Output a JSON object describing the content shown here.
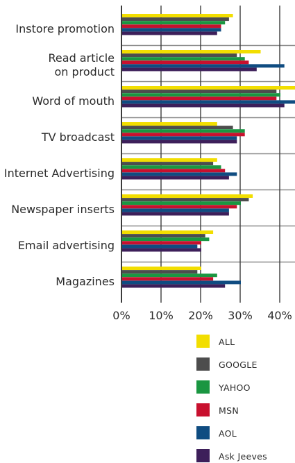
{
  "chart_data": {
    "type": "bar",
    "orientation": "horizontal",
    "title": "",
    "xlabel": "",
    "ylabel": "",
    "xlim": [
      0,
      0.44
    ],
    "x_ticks": [
      "0%",
      "10%",
      "20%",
      "30%",
      "40%"
    ],
    "grid": true,
    "legend_position": "bottom-right",
    "categories": [
      "Instore promotion",
      "Read article on product",
      "Word of mouth",
      "TV broadcast",
      "Internet Advertising",
      "Newspaper inserts",
      "Email advertising",
      "Magazines"
    ],
    "category_lines": [
      [
        "Instore promotion"
      ],
      [
        "Read article",
        "on product"
      ],
      [
        "Word of mouth"
      ],
      [
        "TV broadcast"
      ],
      [
        "Internet Advertising"
      ],
      [
        "Newspaper inserts"
      ],
      [
        "Email advertising"
      ],
      [
        "Magazines"
      ]
    ],
    "series": [
      {
        "name": "ALL",
        "color": "#f2de00",
        "values": [
          0.28,
          0.35,
          0.44,
          0.24,
          0.24,
          0.33,
          0.23,
          0.2
        ]
      },
      {
        "name": "GOOGLE",
        "color": "#4d4d4d",
        "values": [
          0.27,
          0.29,
          0.39,
          0.28,
          0.23,
          0.32,
          0.21,
          0.19
        ]
      },
      {
        "name": "YAHOO",
        "color": "#1a9641",
        "values": [
          0.26,
          0.31,
          0.4,
          0.31,
          0.25,
          0.3,
          0.22,
          0.24
        ]
      },
      {
        "name": "MSN",
        "color": "#c8102e",
        "values": [
          0.25,
          0.32,
          0.39,
          0.31,
          0.26,
          0.29,
          0.2,
          0.23
        ]
      },
      {
        "name": "AOL",
        "color": "#0f4c81",
        "values": [
          0.25,
          0.41,
          0.44,
          0.29,
          0.29,
          0.27,
          0.19,
          0.3
        ]
      },
      {
        "name": "Ask Jeeves",
        "color": "#3d1f5a",
        "values": [
          0.24,
          0.34,
          0.41,
          0.29,
          0.27,
          0.27,
          0.2,
          0.26
        ]
      }
    ]
  }
}
